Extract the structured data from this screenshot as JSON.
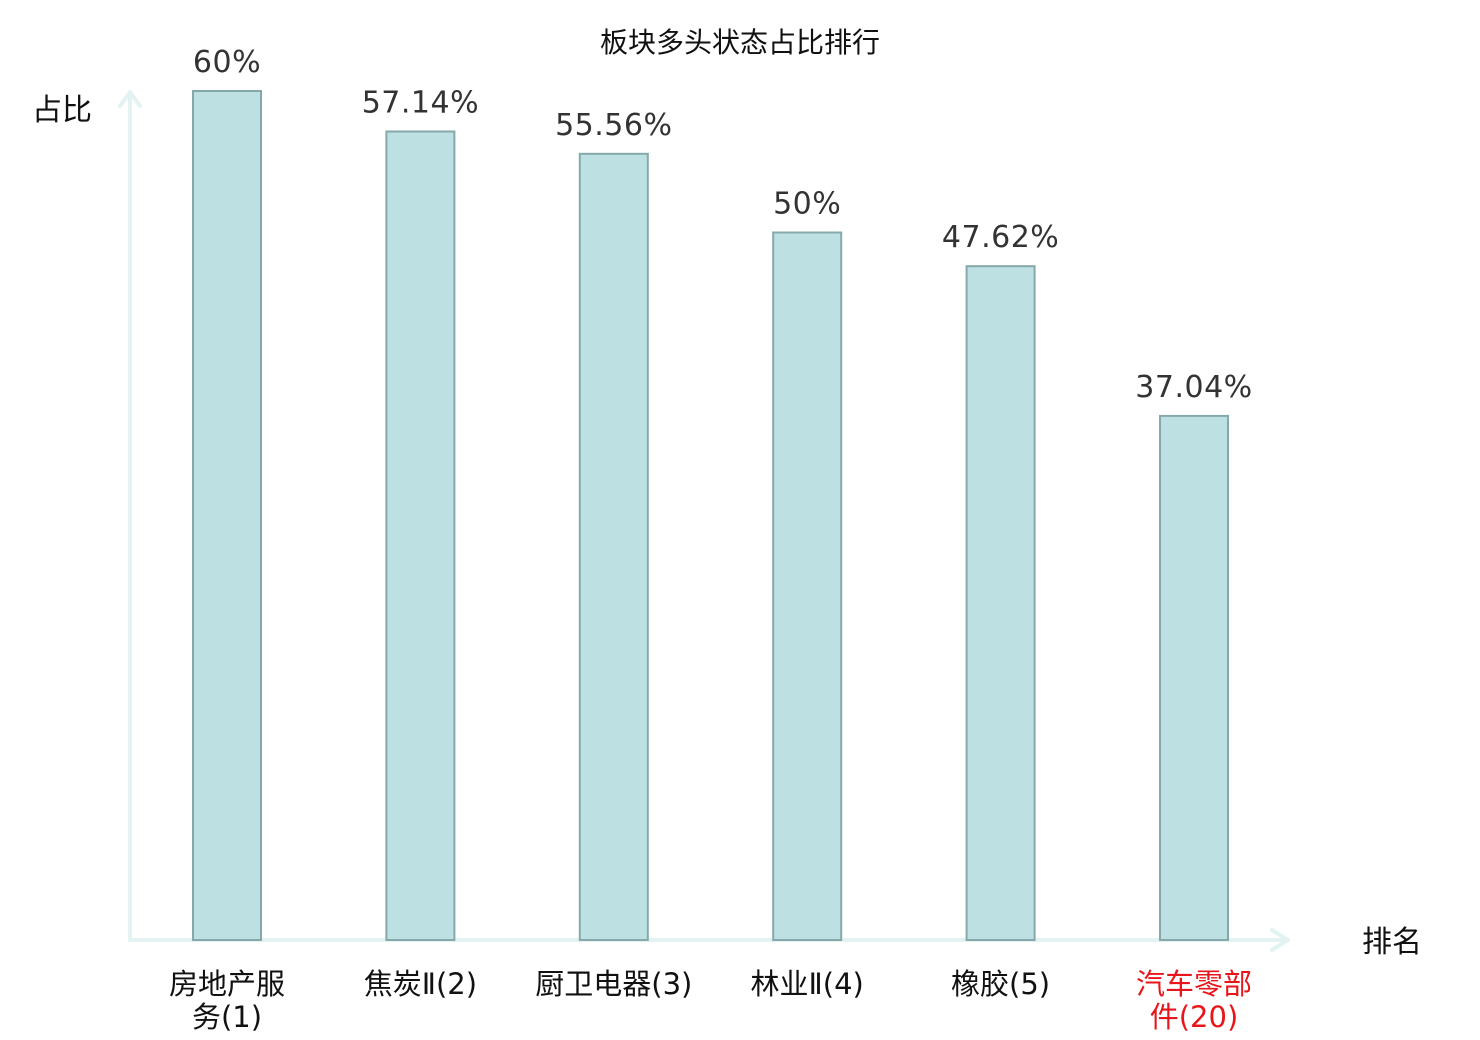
{
  "chart_data": {
    "type": "bar",
    "title": "板块多头状态占比排行",
    "xlabel": "排名",
    "ylabel": "占比",
    "categories": [
      [
        "房地产服",
        "务(1)"
      ],
      [
        "焦炭Ⅱ(2)"
      ],
      [
        "厨卫电器(3)"
      ],
      [
        "林业Ⅱ(4)"
      ],
      [
        "橡胶(5)"
      ],
      [
        "汽车零部",
        "件(20)"
      ]
    ],
    "values": [
      60,
      57.14,
      55.56,
      50,
      47.62,
      37.04
    ],
    "value_labels": [
      "60%",
      "57.14%",
      "55.56%",
      "50%",
      "47.62%",
      "37.04%"
    ],
    "highlight_index": 5,
    "ylim": [
      0,
      60
    ],
    "grid": false,
    "legend": "none",
    "colors": {
      "bar_fill": "#bde1e3",
      "bar_stroke": "#86a8aa",
      "axis": "#e2f3f1",
      "label": "#111111",
      "highlight_label": "#e8161b"
    }
  }
}
